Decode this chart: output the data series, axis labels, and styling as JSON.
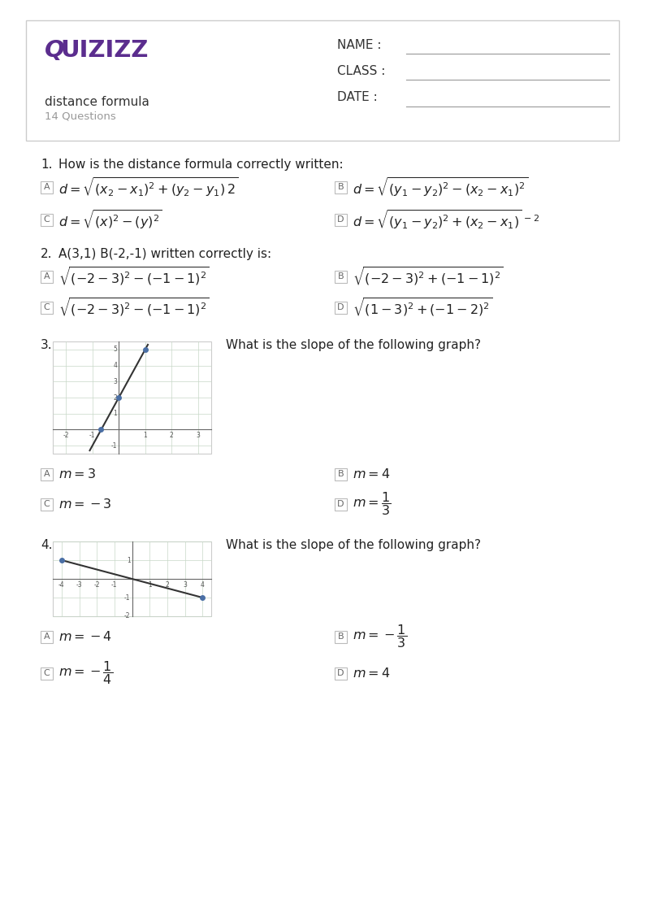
{
  "page_bg": "#ffffff",
  "border_color": "#cccccc",
  "logo_color": "#5b2d8e",
  "subtitle": "distance formula",
  "subcount": "14 Questions",
  "name_label": "NAME :",
  "class_label": "CLASS :",
  "date_label": "DATE :",
  "q1_text": "How is the distance formula correctly written:",
  "q2_text": "A(3,1) B(-2,-1) written correctly is:",
  "q3_text": "What is the slope of the following graph?",
  "q4_text": "What is the slope of the following graph?",
  "text_color": "#222222",
  "gray_text": "#888888",
  "option_border": "#aaaaaa",
  "grid_color": "#c8d8c8",
  "axis_color": "#666666",
  "dot_color": "#4a6fa5",
  "line_color": "#333333"
}
